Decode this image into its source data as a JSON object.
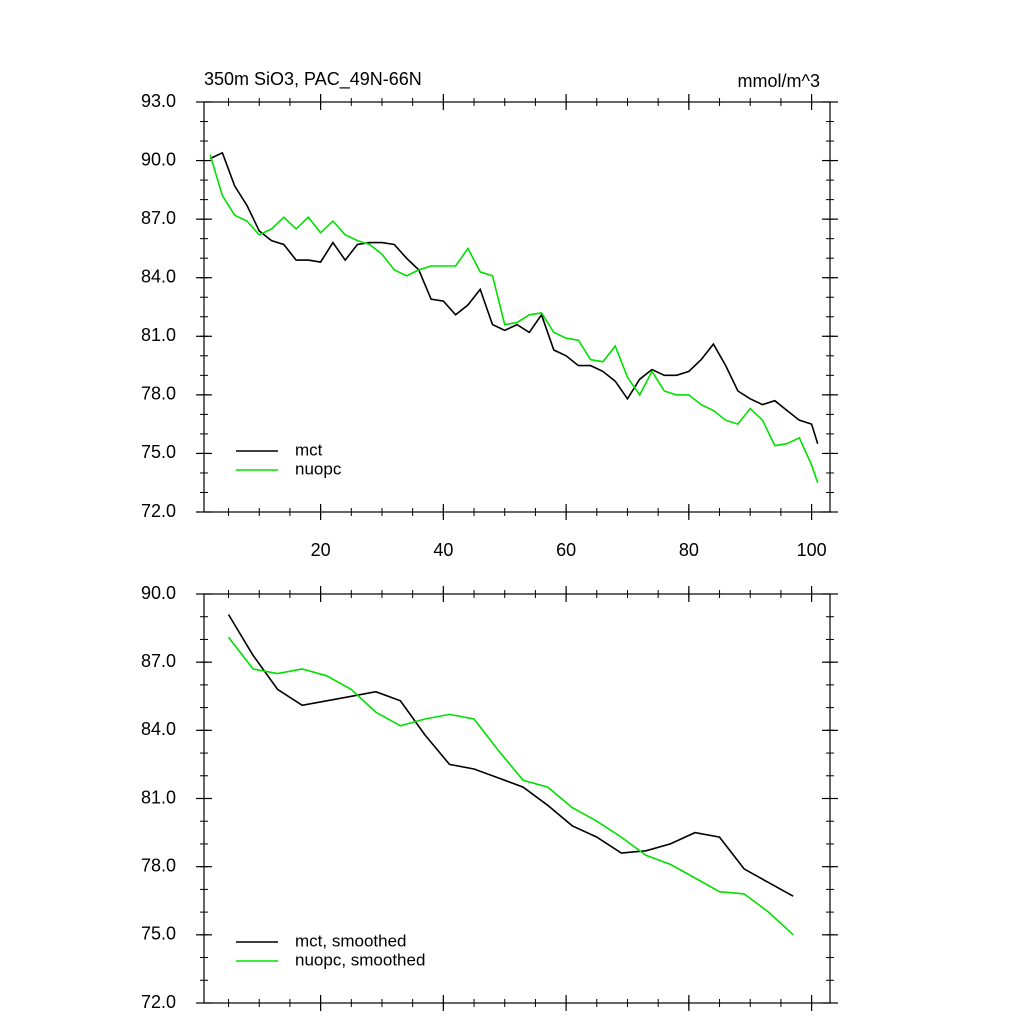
{
  "chart_data": [
    {
      "type": "line",
      "title": "350m SiO3, PAC_49N-66N",
      "units": "mmol/m^3",
      "x": [
        2,
        4,
        6,
        8,
        10,
        12,
        14,
        16,
        18,
        20,
        22,
        24,
        26,
        28,
        30,
        32,
        34,
        36,
        38,
        40,
        42,
        44,
        46,
        48,
        50,
        52,
        54,
        56,
        58,
        60,
        62,
        64,
        66,
        68,
        70,
        72,
        74,
        76,
        78,
        80,
        82,
        84,
        86,
        88,
        90,
        92,
        94,
        96,
        98,
        100,
        101
      ],
      "series": [
        {
          "name": "mct",
          "color": "#000000",
          "values": [
            90.1,
            90.4,
            88.7,
            87.7,
            86.4,
            85.9,
            85.7,
            84.9,
            84.9,
            84.8,
            85.8,
            84.9,
            85.7,
            85.8,
            85.8,
            85.7,
            85.0,
            84.4,
            82.9,
            82.8,
            82.1,
            82.6,
            83.4,
            81.6,
            81.3,
            81.6,
            81.2,
            82.1,
            80.3,
            80.0,
            79.5,
            79.5,
            79.2,
            78.7,
            77.8,
            78.8,
            79.3,
            79.0,
            79.0,
            79.2,
            79.8,
            80.6,
            79.5,
            78.2,
            77.8,
            77.5,
            77.7,
            77.2,
            76.7,
            76.5,
            75.5
          ]
        },
        {
          "name": "nuopc",
          "color": "#00e000",
          "values": [
            90.3,
            88.2,
            87.2,
            86.9,
            86.2,
            86.5,
            87.1,
            86.5,
            87.1,
            86.3,
            86.9,
            86.2,
            85.9,
            85.7,
            85.2,
            84.4,
            84.1,
            84.4,
            84.6,
            84.6,
            84.6,
            85.5,
            84.3,
            84.1,
            81.6,
            81.7,
            82.1,
            82.2,
            81.2,
            80.9,
            80.8,
            79.8,
            79.7,
            80.5,
            78.9,
            78.0,
            79.2,
            78.2,
            78.0,
            78.0,
            77.5,
            77.2,
            76.7,
            76.5,
            77.3,
            76.7,
            75.4,
            75.5,
            75.8,
            74.4,
            73.5
          ]
        }
      ],
      "xlim": [
        1,
        103
      ],
      "xticks": [
        20,
        40,
        60,
        80,
        100
      ],
      "xtick_labels": true,
      "xminor_step": 5,
      "ylim": [
        72,
        93
      ],
      "yticks": [
        {
          "value": 72,
          "label": "72.0"
        },
        {
          "value": 75,
          "label": "75.0"
        },
        {
          "value": 78,
          "label": "78.0"
        },
        {
          "value": 81,
          "label": "81.0"
        },
        {
          "value": 84,
          "label": "84.0"
        },
        {
          "value": 87,
          "label": "87.0"
        },
        {
          "value": 90,
          "label": "90.0"
        },
        {
          "value": 93,
          "label": "93.0"
        }
      ],
      "yminor_step": 1,
      "legend": "lower left"
    },
    {
      "type": "line",
      "x": [
        5,
        9,
        13,
        17,
        21,
        25,
        29,
        33,
        37,
        41,
        45,
        49,
        53,
        57,
        61,
        65,
        69,
        73,
        77,
        81,
        85,
        89,
        93,
        97
      ],
      "series": [
        {
          "name": "mct, smoothed",
          "color": "#000000",
          "values": [
            89.1,
            87.3,
            85.8,
            85.1,
            85.3,
            85.5,
            85.7,
            85.3,
            83.8,
            82.5,
            82.3,
            81.9,
            81.5,
            80.7,
            79.8,
            79.3,
            78.6,
            78.7,
            79.0,
            79.5,
            79.3,
            77.9,
            77.3,
            76.7
          ]
        },
        {
          "name": "nuopc, smoothed",
          "color": "#00e000",
          "values": [
            88.1,
            86.7,
            86.5,
            86.7,
            86.4,
            85.8,
            84.8,
            84.2,
            84.5,
            84.7,
            84.5,
            83.1,
            81.8,
            81.5,
            80.6,
            80.0,
            79.3,
            78.5,
            78.1,
            77.5,
            76.9,
            76.8,
            76.0,
            75.0
          ]
        }
      ],
      "xlim": [
        1,
        103
      ],
      "xticks": [
        20,
        40,
        60,
        80,
        100
      ],
      "xtick_labels": false,
      "xminor_step": 5,
      "ylim": [
        72,
        90
      ],
      "yticks": [
        {
          "value": 72,
          "label": "72.0"
        },
        {
          "value": 75,
          "label": "75.0"
        },
        {
          "value": 78,
          "label": "78.0"
        },
        {
          "value": 81,
          "label": "81.0"
        },
        {
          "value": 84,
          "label": "84.0"
        },
        {
          "value": 87,
          "label": "87.0"
        },
        {
          "value": 90,
          "label": "90.0"
        }
      ],
      "yminor_step": 1,
      "legend": "lower left"
    }
  ]
}
